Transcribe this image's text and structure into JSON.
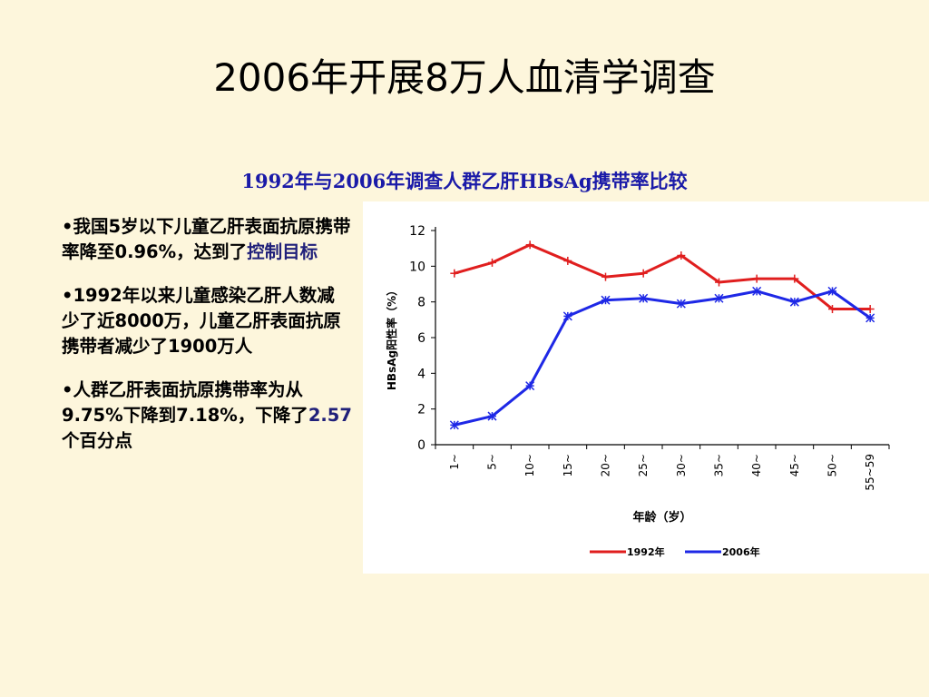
{
  "slide": {
    "title": "2006年开展8万人血清学调查",
    "chart_heading_parts": [
      "1992",
      "年与",
      "2006",
      "年调查人群乙肝",
      "HBsAg",
      "携带率比较"
    ]
  },
  "bullets": [
    {
      "prefix": "•我国5岁以下儿童乙肝表面抗原携带率降至0.96%，达到了",
      "highlight": "控制目标",
      "suffix": ""
    },
    {
      "prefix": "•1992年以来儿童感染乙肝人数减少了近8000万，儿童乙肝表面抗原携带者减少了1900万人",
      "highlight": "",
      "suffix": ""
    },
    {
      "prefix": "•人群乙肝表面抗原携带率为从9.75%下降到7.18%，下降了",
      "highlight": "2.57",
      "suffix": "个百分点"
    }
  ],
  "chart_data": {
    "type": "line",
    "categories": [
      "1~",
      "5~",
      "10~",
      "15~",
      "20~",
      "25~",
      "30~",
      "35~",
      "40~",
      "45~",
      "50~",
      "55~59"
    ],
    "series": [
      {
        "name": "1992年",
        "color": "#e01e1e",
        "marker": "plus",
        "values": [
          9.6,
          10.2,
          11.2,
          10.3,
          9.4,
          9.6,
          10.6,
          9.1,
          9.3,
          9.3,
          7.6,
          7.6
        ]
      },
      {
        "name": "2006年",
        "color": "#1e28e6",
        "marker": "star",
        "values": [
          1.1,
          1.6,
          3.3,
          7.2,
          8.1,
          8.2,
          7.9,
          8.2,
          8.6,
          8.0,
          8.6,
          7.1
        ]
      }
    ],
    "ylim": [
      0,
      12
    ],
    "yticks": [
      0,
      2,
      4,
      6,
      8,
      10,
      12
    ],
    "xlabel": "年龄（岁）",
    "ylabel": "HBsAg阳性率（%）",
    "legend_position": "bottom",
    "grid": false
  }
}
